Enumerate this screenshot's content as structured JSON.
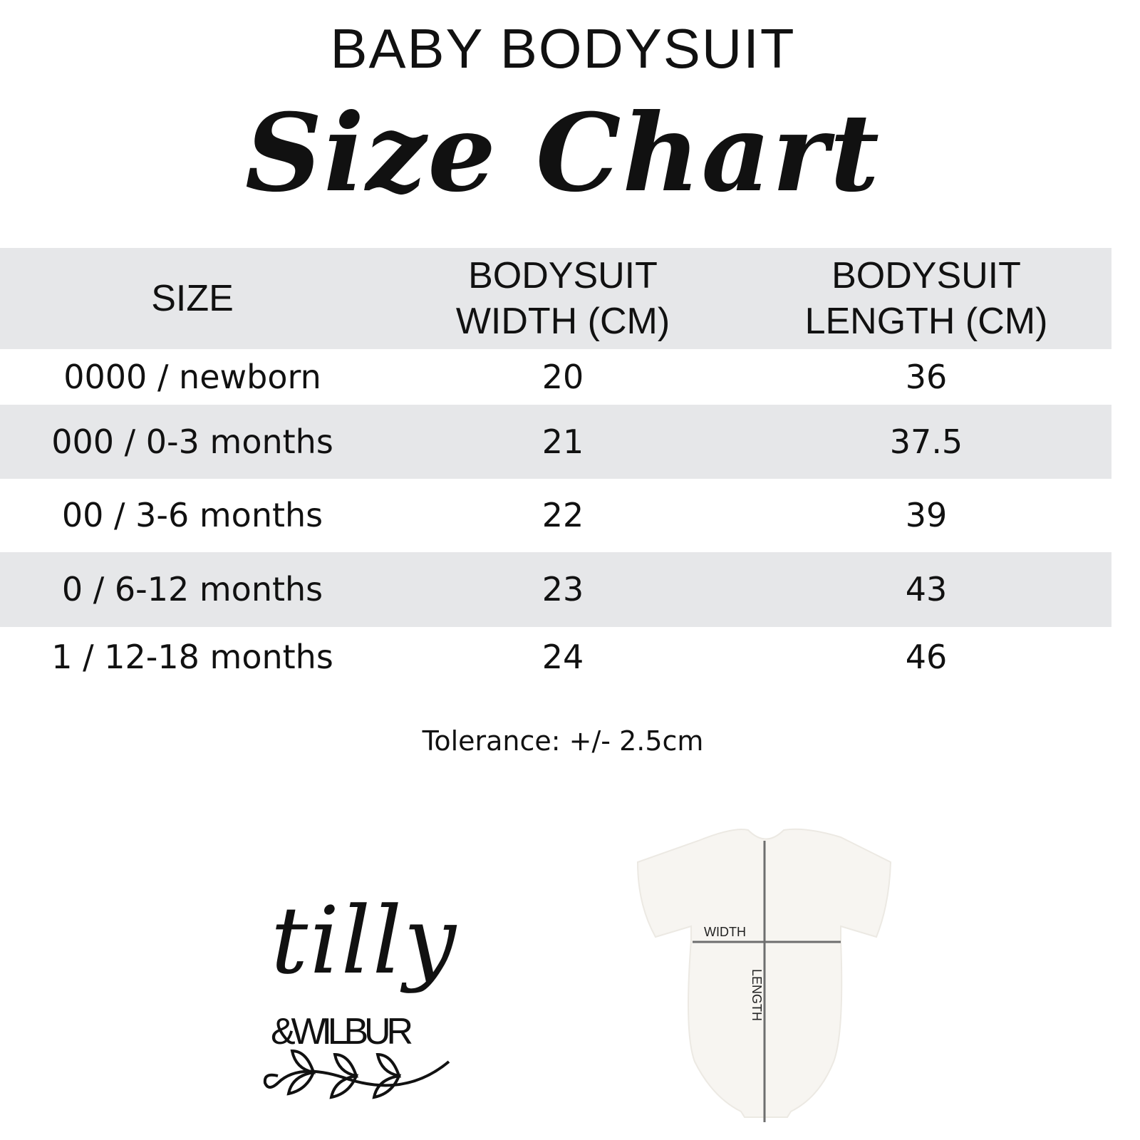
{
  "header": {
    "title_line1": "BABY BODYSUIT",
    "title_line2": "Size Chart"
  },
  "table": {
    "columns": [
      "SIZE",
      "BODYSUIT WIDTH (CM)",
      "BODYSUIT LENGTH (CM)"
    ],
    "columns_display": [
      [
        "SIZE"
      ],
      [
        "BODYSUIT",
        "WIDTH (CM)"
      ],
      [
        "BODYSUIT",
        "LENGTH (CM)"
      ]
    ],
    "rows": [
      [
        "0000 / newborn",
        "20",
        "36"
      ],
      [
        "000 / 0-3 months",
        "21",
        "37.5"
      ],
      [
        "00 / 3-6 months",
        "22",
        "39"
      ],
      [
        "0 / 6-12 months",
        "23",
        "43"
      ],
      [
        "1 / 12-18 months",
        "24",
        "46"
      ]
    ],
    "stripe_color": "#e6e7e9"
  },
  "tolerance": "Tolerance: +/- 2.5cm",
  "logo": {
    "text_line1": "tilly",
    "text_line2": "&WILBUR"
  },
  "diagram": {
    "width_label": "WIDTH",
    "length_label": "LENGTH"
  }
}
